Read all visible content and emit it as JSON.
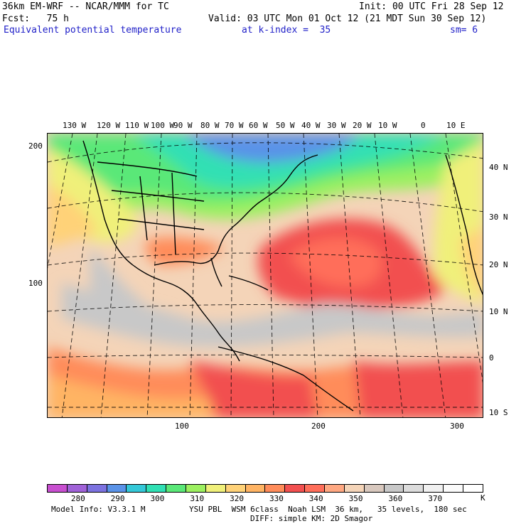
{
  "header": {
    "line1_left": "36km EM-WRF -- NCAR/MMM for TC",
    "line1_right": "Init: 00 UTC Fri 28 Sep 12",
    "line2_left": "Fcst:   75 h",
    "line2_right": "Valid: 03 UTC Mon 01 Oct 12 (21 MDT Sun 30 Sep 12)",
    "line3_field": "Equivalent potential temperature",
    "line3_level": "at k-index =  35",
    "line3_sm": "sm= 6"
  },
  "map": {
    "lon_labels": [
      "130 W",
      "120 W",
      "110 W",
      "100 W",
      "90 W",
      "80 W",
      "70 W",
      "60 W",
      "50 W",
      "40 W",
      "30 W",
      "20 W",
      "10 W",
      "0",
      "10 E"
    ],
    "lat_labels": [
      "40 N",
      "30 N",
      "20 N",
      "10 N",
      "0",
      "10 S"
    ],
    "grid_x_labels": [
      "100",
      "200",
      "300"
    ],
    "grid_y_labels": [
      "200",
      "100"
    ]
  },
  "colorbar": {
    "colors": [
      "#c84fd0",
      "#a062d8",
      "#7c72e0",
      "#5a93e8",
      "#34c8d8",
      "#30e0b4",
      "#5ae878",
      "#9cf060",
      "#f0f07a",
      "#ffd278",
      "#ffb464",
      "#ff8c5a",
      "#f25050",
      "#ff6e5a",
      "#ffa882",
      "#f4d4b8",
      "#d8c8be",
      "#c8c8c8",
      "#dcdcdc",
      "#f0f0f0",
      "#fafafa",
      "#ffffff"
    ],
    "labels": [
      "280",
      "290",
      "300",
      "310",
      "320",
      "330",
      "340",
      "350",
      "360",
      "370"
    ],
    "unit": "K"
  },
  "footer": {
    "model_info": "Model Info: V3.3.1 M",
    "physics1": "YSU PBL  WSM 6class  Noah LSM  36 km,   35 levels,  180 sec",
    "physics2": "DIFF: simple KM: 2D Smagor"
  }
}
